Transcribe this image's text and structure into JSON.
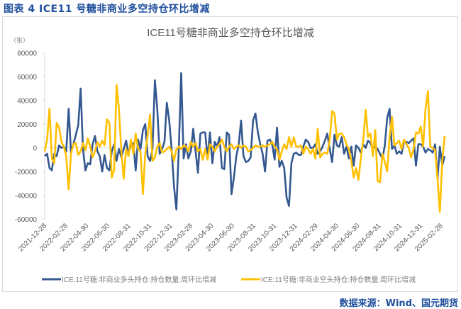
{
  "figure_title": "图表 4 ICE11 号糖非商业多空持仓环比增减",
  "source": "数据来源：Wind、国元期货",
  "chart_data": {
    "type": "line",
    "title": "ICE11号糖非商业多空持仓环比增减",
    "ylabel": "（张）",
    "xlabel": "",
    "ylim": [
      -60000,
      80000
    ],
    "yticks": [
      80000,
      60000,
      40000,
      20000,
      0,
      -20000,
      -40000,
      -60000
    ],
    "ytick_labels": [
      "80000",
      "60000",
      "40000",
      "20000",
      "0",
      "-20000",
      "-40000",
      "-60000"
    ],
    "xtick_labels": [
      "2021-12-28",
      "2022-02-28",
      "2022-04-30",
      "2022-06-30",
      "2022-08-31",
      "2022-10-31",
      "2022-12-31",
      "2023-02-28",
      "2023-04-30",
      "2023-06-30",
      "2023-08-31",
      "2023-10-31",
      "2023-12-31",
      "2024-02-29",
      "2024-04-30",
      "2024-06-30",
      "2024-08-31",
      "2024-10-31",
      "2024-12-31",
      "2025-02-28"
    ],
    "grid": false,
    "legend_position": "bottom",
    "colors": {
      "long": "#34588f",
      "short": "#ffc000",
      "axis": "#d9d9d9",
      "text": "#595959"
    },
    "x": [
      "2021-12-28",
      "2022-01-04",
      "2022-01-11",
      "2022-01-18",
      "2022-01-25",
      "2022-02-01",
      "2022-02-08",
      "2022-02-15",
      "2022-02-22",
      "2022-03-01",
      "2022-03-08",
      "2022-03-15",
      "2022-03-22",
      "2022-03-29",
      "2022-04-05",
      "2022-04-12",
      "2022-04-19",
      "2022-04-26",
      "2022-05-03",
      "2022-05-10",
      "2022-05-17",
      "2022-05-24",
      "2022-05-31",
      "2022-06-07",
      "2022-06-14",
      "2022-06-21",
      "2022-06-28",
      "2022-07-05",
      "2022-07-12",
      "2022-07-19",
      "2022-07-26",
      "2022-08-02",
      "2022-08-09",
      "2022-08-16",
      "2022-08-23",
      "2022-08-30",
      "2022-09-06",
      "2022-09-13",
      "2022-09-20",
      "2022-09-27",
      "2022-10-04",
      "2022-10-11",
      "2022-10-18",
      "2022-10-25",
      "2022-11-01",
      "2022-11-08",
      "2022-11-15",
      "2022-11-22",
      "2022-11-29",
      "2022-12-06",
      "2022-12-13",
      "2022-12-20",
      "2022-12-27",
      "2023-01-03",
      "2023-01-10",
      "2023-01-17",
      "2023-01-24",
      "2023-01-31",
      "2023-02-07",
      "2023-02-14",
      "2023-02-21",
      "2023-02-28",
      "2023-03-07",
      "2023-03-14",
      "2023-03-21",
      "2023-03-28",
      "2023-04-04",
      "2023-04-11",
      "2023-04-18",
      "2023-04-25",
      "2023-05-02",
      "2023-05-09",
      "2023-05-16",
      "2023-05-23",
      "2023-05-30",
      "2023-06-06",
      "2023-06-13",
      "2023-06-20",
      "2023-06-27",
      "2023-07-04",
      "2023-07-11",
      "2023-07-18",
      "2023-07-25",
      "2023-08-01",
      "2023-08-08",
      "2023-08-15",
      "2023-08-22",
      "2023-08-29",
      "2023-09-05",
      "2023-09-12",
      "2023-09-19",
      "2023-09-26",
      "2023-10-03",
      "2023-10-10",
      "2023-10-17",
      "2023-10-24",
      "2023-10-31",
      "2023-11-07",
      "2023-11-14",
      "2023-11-21",
      "2023-11-28",
      "2023-12-05",
      "2023-12-12",
      "2023-12-19",
      "2023-12-26",
      "2024-01-02",
      "2024-01-09",
      "2024-01-16",
      "2024-01-23",
      "2024-01-30",
      "2024-02-06",
      "2024-02-13",
      "2024-02-20",
      "2024-02-27",
      "2024-03-05",
      "2024-03-12",
      "2024-03-19",
      "2024-03-26",
      "2024-04-02",
      "2024-04-09",
      "2024-04-16",
      "2024-04-23",
      "2024-04-30",
      "2024-05-07",
      "2024-05-14",
      "2024-05-21",
      "2024-05-28",
      "2024-06-04",
      "2024-06-11",
      "2024-06-18",
      "2024-06-25",
      "2024-07-02",
      "2024-07-09",
      "2024-07-16",
      "2024-07-23",
      "2024-07-30",
      "2024-08-06",
      "2024-08-13",
      "2024-08-20",
      "2024-08-27",
      "2024-09-03",
      "2024-09-10",
      "2024-09-17",
      "2024-09-24",
      "2024-10-01",
      "2024-10-08",
      "2024-10-15",
      "2024-10-22",
      "2024-10-29",
      "2024-11-05",
      "2024-11-12",
      "2024-11-19",
      "2024-11-26",
      "2024-12-03",
      "2024-12-10",
      "2024-12-17",
      "2024-12-24",
      "2024-12-31",
      "2025-01-07",
      "2025-01-14",
      "2025-01-21",
      "2025-01-28",
      "2025-02-04",
      "2025-02-11",
      "2025-02-18",
      "2025-02-25",
      "2025-03-04",
      "2025-03-11"
    ],
    "series": [
      {
        "name": "ICE:11号糖:非商业多头持仓:持仓数量:周环比增减",
        "key": "long",
        "values": [
          -7000,
          -5000,
          -17000,
          -19000,
          -5000,
          -7000,
          2000,
          0,
          1000,
          -3000,
          33000,
          -4000,
          3000,
          11000,
          19000,
          50000,
          -1000,
          -19000,
          -13000,
          -14000,
          3000,
          10000,
          -3000,
          -7000,
          -20000,
          -6000,
          -17000,
          -19000,
          -3000,
          3000,
          -11000,
          -1000,
          -8000,
          -1000,
          6000,
          -5000,
          3000,
          4000,
          -19000,
          7000,
          -1000,
          15000,
          20000,
          -7000,
          -11000,
          -1000,
          57000,
          33000,
          -5000,
          -1000,
          5000,
          38000,
          23000,
          -1000,
          -33000,
          -52000,
          -1000,
          63000,
          -9000,
          3000,
          -9000,
          -3000,
          16000,
          -3000,
          -21000,
          12000,
          13000,
          13000,
          -9000,
          13000,
          -13000,
          5000,
          1000,
          9000,
          -17000,
          -18000,
          13000,
          11000,
          -39000,
          -25000,
          -7000,
          3000,
          23000,
          -7000,
          -12000,
          -11000,
          -8000,
          23000,
          29000,
          13000,
          3000,
          -5000,
          -20000,
          6000,
          7000,
          3000,
          -10000,
          17000,
          -16000,
          -11000,
          -17000,
          -42000,
          -49000,
          -13000,
          -5000,
          -4000,
          -6000,
          -6000,
          1000,
          7000,
          5000,
          0,
          0,
          3000,
          -5000,
          -3000,
          1000,
          6000,
          12000,
          -1000,
          -12000,
          11000,
          2000,
          1000,
          9000,
          -5000,
          1000,
          -9000,
          1000,
          -15000,
          2000,
          0,
          -4000,
          3000,
          0,
          6000,
          4000,
          -1000,
          1000,
          -1000,
          -5000,
          -9000,
          2000,
          25000,
          33000,
          -1000,
          2000,
          -5000,
          -3000,
          -5000,
          5000,
          5000,
          4000,
          6000,
          8000,
          -15000,
          3000,
          3000,
          1000,
          -4000,
          -1000,
          -2000,
          -4000,
          3000,
          -26000,
          1000,
          -15000,
          -7000
        ]
      },
      {
        "name": "ICE:11号糖:非商业空头持仓:持仓数量:周环比增减",
        "key": "short",
        "values": [
          -3000,
          7000,
          33000,
          -9000,
          -13000,
          21000,
          17000,
          5000,
          1000,
          -7000,
          -35000,
          -5000,
          3000,
          4000,
          -6000,
          -3000,
          4000,
          -2000,
          8000,
          1000,
          -8000,
          -3000,
          5000,
          1000,
          6000,
          2000,
          24000,
          21000,
          -25000,
          -19000,
          53000,
          33000,
          -3000,
          -26000,
          -1000,
          -7000,
          7000,
          -5000,
          12000,
          -1000,
          -3000,
          -39000,
          -5000,
          11000,
          28000,
          -11000,
          -8000,
          1000,
          4000,
          -4000,
          -3000,
          -1000,
          1000,
          -3000,
          -11000,
          -1000,
          1000,
          -1000,
          2000,
          1000,
          -3000,
          5000,
          1000,
          4000,
          -3000,
          -1000,
          -10000,
          -1000,
          -10000,
          3000,
          1000,
          -3000,
          1000,
          3000,
          7000,
          1000,
          -3000,
          1000,
          3000,
          -1000,
          1000,
          2000,
          0,
          2000,
          1000,
          -3000,
          -2000,
          0,
          2000,
          1000,
          1000,
          2000,
          1000,
          2000,
          3000,
          5000,
          1000,
          -1000,
          -10000,
          -3000,
          3000,
          -1000,
          9000,
          1000,
          9000,
          1000,
          1000,
          2000,
          -5000,
          1000,
          -1000,
          -5000,
          -1000,
          -9000,
          16000,
          -8000,
          -5000,
          -4000,
          -5000,
          7000,
          31000,
          29000,
          7000,
          12000,
          12000,
          9000,
          3000,
          -1000,
          -11000,
          -25000,
          -17000,
          -27000,
          -9000,
          7000,
          32000,
          9000,
          12000,
          -7000,
          15000,
          -28000,
          -29000,
          -5000,
          -12000,
          -20000,
          9000,
          26000,
          2000,
          4000,
          6000,
          -1000,
          7000,
          3000,
          0,
          -8000,
          -1000,
          13000,
          12000,
          18000,
          1000,
          33000,
          48000,
          1000,
          0,
          -2000,
          -26000,
          -54000,
          -11000,
          10000
        ]
      }
    ]
  }
}
